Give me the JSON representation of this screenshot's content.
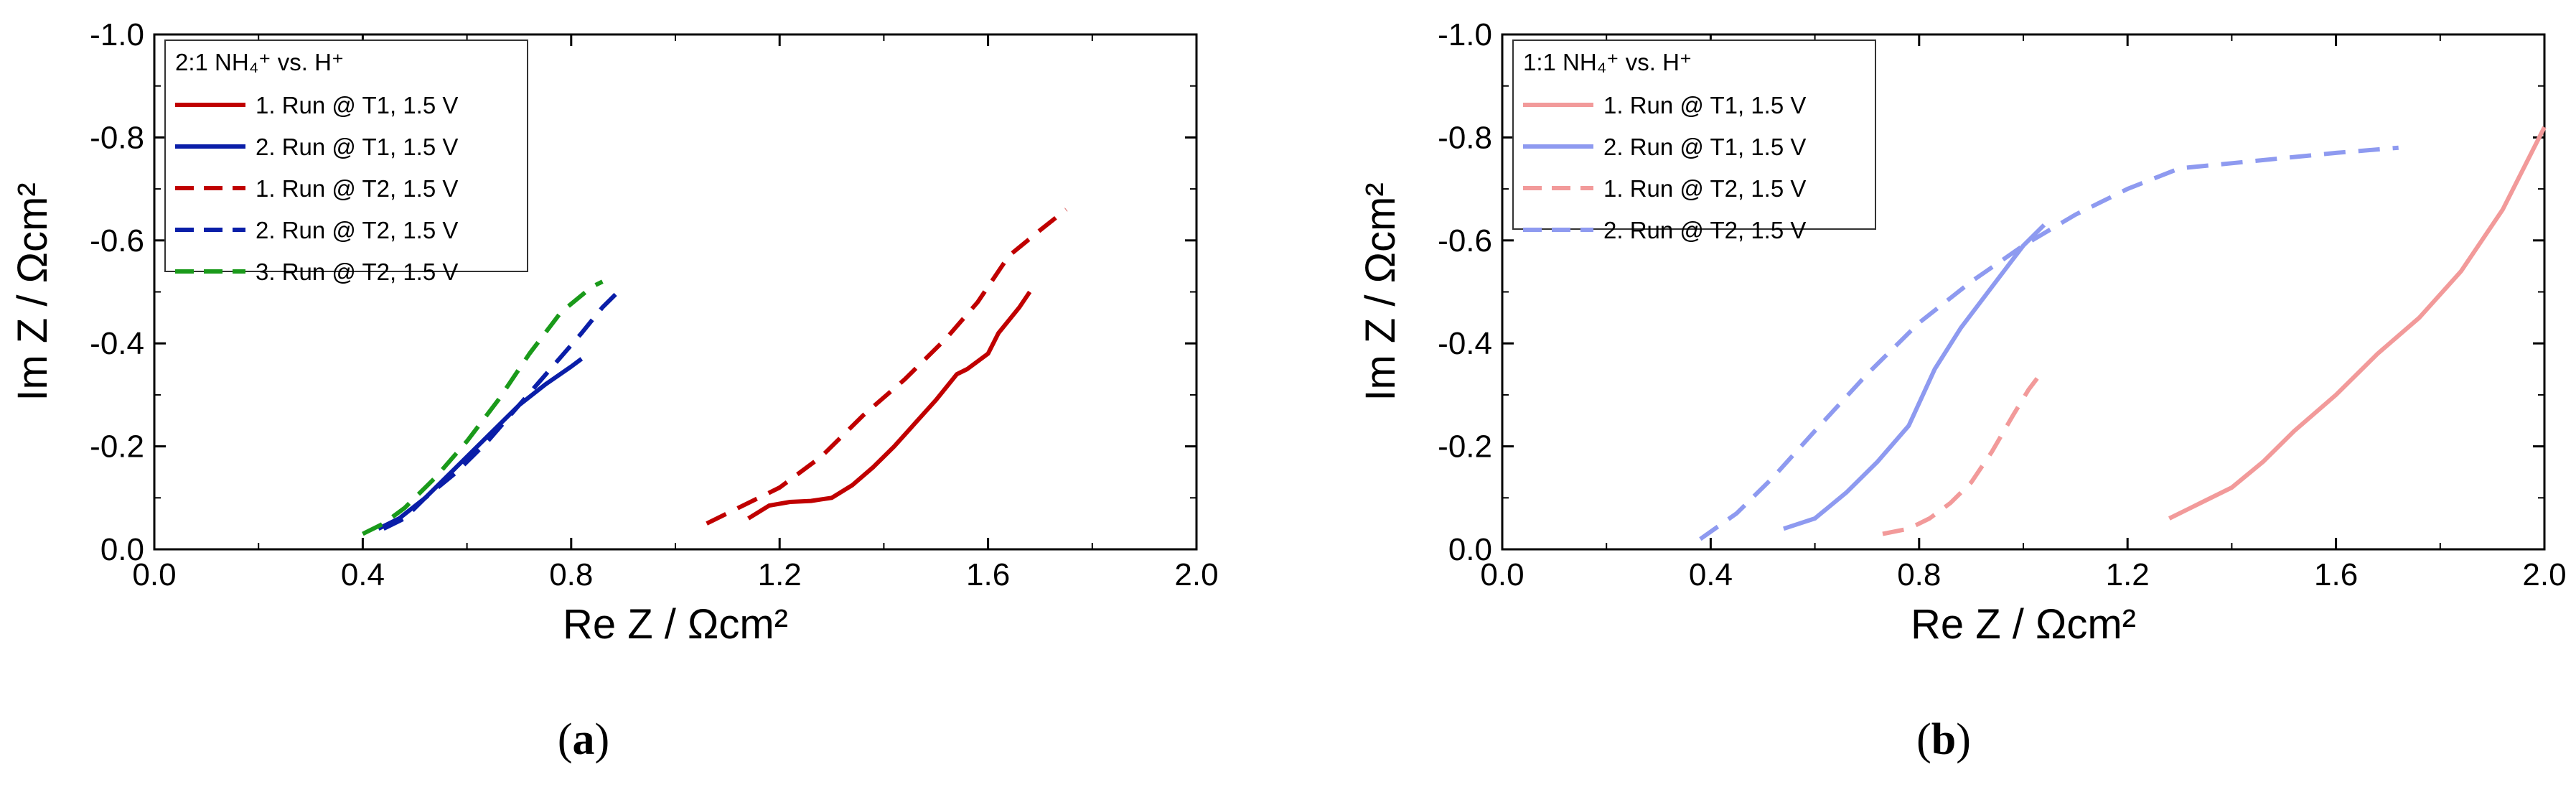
{
  "chart_data": [
    {
      "type": "line",
      "panel_label": "a",
      "xlabel": "Re Z / Ωcm²",
      "ylabel": "Im Z / Ωcm²",
      "xlim": [
        0.0,
        2.0
      ],
      "ylim": [
        0.0,
        -1.0
      ],
      "y_inverted": true,
      "xticks": [
        "0.0",
        "0.4",
        "0.8",
        "1.2",
        "1.6",
        "2.0"
      ],
      "yticks": [
        "0.0",
        "-0.2",
        "-0.4",
        "-0.6",
        "-0.8",
        "-1.0"
      ],
      "grid": false,
      "legend_position": "top-left",
      "legend_title": "2:1 NH₄⁺ vs. H⁺",
      "series": [
        {
          "name": "1. Run @ T1, 1.5 V",
          "color": "#c00000",
          "dash": "solid",
          "x": [
            1.14,
            1.18,
            1.22,
            1.26,
            1.3,
            1.34,
            1.38,
            1.42,
            1.46,
            1.5,
            1.54,
            1.56,
            1.6,
            1.62,
            1.66,
            1.68
          ],
          "y": [
            -0.06,
            -0.085,
            -0.092,
            -0.094,
            -0.1,
            -0.125,
            -0.16,
            -0.2,
            -0.245,
            -0.29,
            -0.34,
            -0.35,
            -0.38,
            -0.42,
            -0.47,
            -0.5
          ]
        },
        {
          "name": "2. Run @ T1, 1.5 V",
          "color": "#0a1ea8",
          "dash": "solid",
          "x": [
            0.43,
            0.47,
            0.52,
            0.58,
            0.64,
            0.7,
            0.75,
            0.8,
            0.82
          ],
          "y": [
            -0.04,
            -0.06,
            -0.1,
            -0.16,
            -0.22,
            -0.28,
            -0.32,
            -0.355,
            -0.37
          ]
        },
        {
          "name": "1. Run @ T2, 1.5 V",
          "color": "#c00000",
          "dash": "dashed",
          "x": [
            1.06,
            1.12,
            1.2,
            1.28,
            1.36,
            1.44,
            1.52,
            1.58,
            1.64,
            1.7,
            1.75
          ],
          "y": [
            -0.05,
            -0.08,
            -0.12,
            -0.18,
            -0.26,
            -0.33,
            -0.41,
            -0.48,
            -0.57,
            -0.62,
            -0.66
          ]
        },
        {
          "name": "2. Run @ T2, 1.5 V",
          "color": "#0a1ea8",
          "dash": "dashed",
          "x": [
            0.44,
            0.48,
            0.52,
            0.58,
            0.64,
            0.7,
            0.76,
            0.82,
            0.86,
            0.9
          ],
          "y": [
            -0.04,
            -0.06,
            -0.1,
            -0.15,
            -0.21,
            -0.28,
            -0.35,
            -0.42,
            -0.47,
            -0.51
          ]
        },
        {
          "name": "3. Run @ T2, 1.5 V",
          "color": "#1a9a1a",
          "dash": "dashed",
          "x": [
            0.4,
            0.44,
            0.48,
            0.54,
            0.6,
            0.66,
            0.72,
            0.78,
            0.84,
            0.86
          ],
          "y": [
            -0.03,
            -0.05,
            -0.08,
            -0.14,
            -0.21,
            -0.29,
            -0.38,
            -0.46,
            -0.51,
            -0.52
          ]
        }
      ]
    },
    {
      "type": "line",
      "panel_label": "b",
      "xlabel": "Re Z / Ωcm²",
      "ylabel": "Im Z / Ωcm²",
      "xlim": [
        0.0,
        2.0
      ],
      "ylim": [
        0.0,
        -1.0
      ],
      "y_inverted": true,
      "xticks": [
        "0.0",
        "0.4",
        "0.8",
        "1.2",
        "1.6",
        "2.0"
      ],
      "yticks": [
        "0.0",
        "-0.2",
        "-0.4",
        "-0.6",
        "-0.8",
        "-1.0"
      ],
      "grid": false,
      "legend_position": "top-left",
      "legend_title": "1:1 NH₄⁺ vs. H⁺",
      "series": [
        {
          "name": "1. Run @ T1, 1.5 V",
          "color": "#f29a9a",
          "dash": "solid",
          "x": [
            1.28,
            1.34,
            1.4,
            1.46,
            1.52,
            1.6,
            1.68,
            1.76,
            1.84,
            1.92,
            2.0
          ],
          "y": [
            -0.06,
            -0.09,
            -0.12,
            -0.17,
            -0.23,
            -0.3,
            -0.38,
            -0.45,
            -0.54,
            -0.66,
            -0.82
          ]
        },
        {
          "name": "2. Run @ T1, 1.5 V",
          "color": "#8e9af0",
          "dash": "solid",
          "x": [
            0.54,
            0.6,
            0.66,
            0.72,
            0.78,
            0.83,
            0.88,
            0.94,
            1.0,
            1.04
          ],
          "y": [
            -0.04,
            -0.06,
            -0.11,
            -0.17,
            -0.24,
            -0.35,
            -0.43,
            -0.51,
            -0.59,
            -0.63
          ]
        },
        {
          "name": "1. Run @ T2, 1.5 V",
          "color": "#f29a9a",
          "dash": "dashed",
          "x": [
            0.73,
            0.78,
            0.82,
            0.86,
            0.9,
            0.94,
            0.98,
            1.01,
            1.04
          ],
          "y": [
            -0.03,
            -0.04,
            -0.06,
            -0.09,
            -0.13,
            -0.19,
            -0.26,
            -0.31,
            -0.35
          ]
        },
        {
          "name": "2. Run @ T2, 1.5 V",
          "color": "#8e9af0",
          "dash": "dashed",
          "x": [
            0.38,
            0.45,
            0.52,
            0.6,
            0.7,
            0.8,
            0.9,
            1.0,
            1.1,
            1.2,
            1.3,
            1.4,
            1.5,
            1.6,
            1.72
          ],
          "y": [
            -0.02,
            -0.07,
            -0.14,
            -0.23,
            -0.34,
            -0.44,
            -0.52,
            -0.59,
            -0.65,
            -0.7,
            -0.74,
            -0.75,
            -0.76,
            -0.77,
            -0.78
          ]
        }
      ]
    }
  ]
}
